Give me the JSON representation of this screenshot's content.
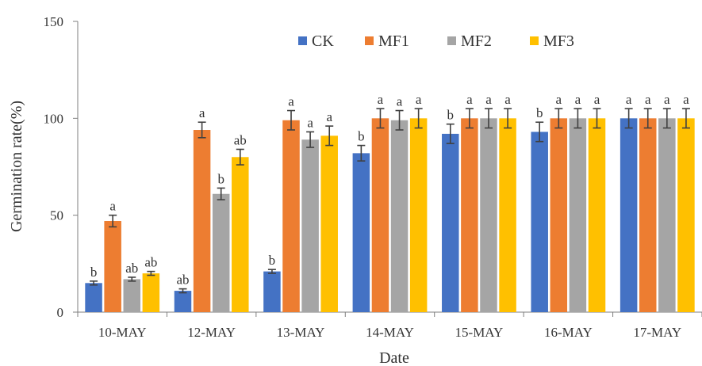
{
  "chart_data": {
    "type": "bar",
    "xlabel": "Date",
    "ylabel": "Germination rate(%)",
    "ylim": [
      0,
      150
    ],
    "yticks": [
      0,
      50,
      100,
      150
    ],
    "grid": false,
    "legend_position": "top-right",
    "categories": [
      "10-MAY",
      "12-MAY",
      "13-MAY",
      "14-MAY",
      "15-MAY",
      "16-MAY",
      "17-MAY"
    ],
    "series": [
      {
        "name": "CK",
        "color": "#4472C4",
        "values": [
          15,
          11,
          21,
          82,
          92,
          93,
          100
        ],
        "errors": [
          1,
          1,
          1,
          4,
          5,
          5,
          5
        ],
        "labels": [
          "b",
          "ab",
          "b",
          "b",
          "b",
          "b",
          "a"
        ]
      },
      {
        "name": "MF1",
        "color": "#ED7D31",
        "values": [
          47,
          94,
          99,
          100,
          100,
          100,
          100
        ],
        "errors": [
          3,
          4,
          5,
          5,
          5,
          5,
          5
        ],
        "labels": [
          "a",
          "a",
          "a",
          "a",
          "a",
          "a",
          "a"
        ]
      },
      {
        "name": "MF2",
        "color": "#A5A5A5",
        "values": [
          17,
          61,
          89,
          99,
          100,
          100,
          100
        ],
        "errors": [
          1,
          3,
          4,
          5,
          5,
          5,
          5
        ],
        "labels": [
          "ab",
          "b",
          "a",
          "a",
          "a",
          "a",
          "a"
        ]
      },
      {
        "name": "MF3",
        "color": "#FFC000",
        "values": [
          20,
          80,
          91,
          100,
          100,
          100,
          100
        ],
        "errors": [
          1,
          4,
          5,
          5,
          5,
          5,
          5
        ],
        "labels": [
          "ab",
          "ab",
          "a",
          "a",
          "a",
          "a",
          "a"
        ]
      }
    ]
  }
}
